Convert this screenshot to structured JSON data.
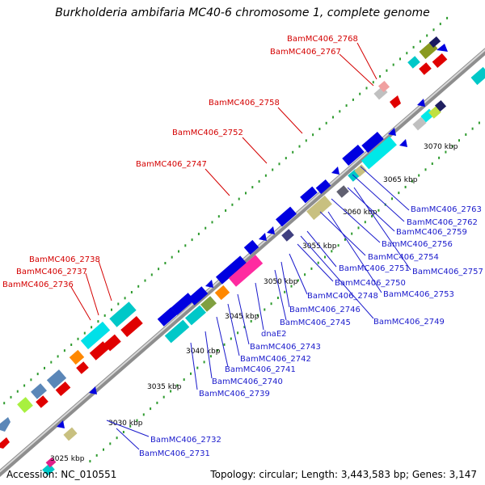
{
  "title": "Burkholderia ambifaria MC40-6 chromosome 1, complete genome",
  "accession": "Accession: NC_010551",
  "topology": "Topology: circular; Length: 3,443,583 bp; Genes: 3,147",
  "colors": {
    "backbone": "#a0a0a0",
    "tick": "#2e9b2e",
    "label_top": "#d40000",
    "label_bottom": "#1a1acc"
  },
  "kbp_ticks": [
    {
      "label": "3025 kbp"
    },
    {
      "label": "3030 kbp"
    },
    {
      "label": "3035 kbp"
    },
    {
      "label": "3040 kbp"
    },
    {
      "label": "3045 kbp"
    },
    {
      "label": "3050 kbp"
    },
    {
      "label": "3055 kbp"
    },
    {
      "label": "3060 kbp"
    },
    {
      "label": "3065 kbp"
    },
    {
      "label": "3070 kbp"
    }
  ],
  "top_labels": [
    "BamMC406_2768",
    "BamMC406_2767",
    "BamMC406_2758",
    "BamMC406_2752",
    "BamMC406_2747",
    "BamMC406_2738",
    "BamMC406_2737",
    "BamMC406_2736"
  ],
  "bottom_labels": [
    "BamMC406_2763",
    "BamMC406_2762",
    "BamMC406_2759",
    "BamMC406_2756",
    "BamMC406_2757",
    "BamMC406_2754",
    "BamMC406_2751",
    "BamMC406_2753",
    "BamMC406_2750",
    "BamMC406_2748",
    "BamMC406_2746",
    "BamMC406_2749",
    "BamMC406_2745",
    "dnaE2",
    "BamMC406_2743",
    "BamMC406_2742",
    "BamMC406_2741",
    "BamMC406_2740",
    "BamMC406_2739",
    "BamMC406_2732",
    "BamMC406_2731"
  ]
}
